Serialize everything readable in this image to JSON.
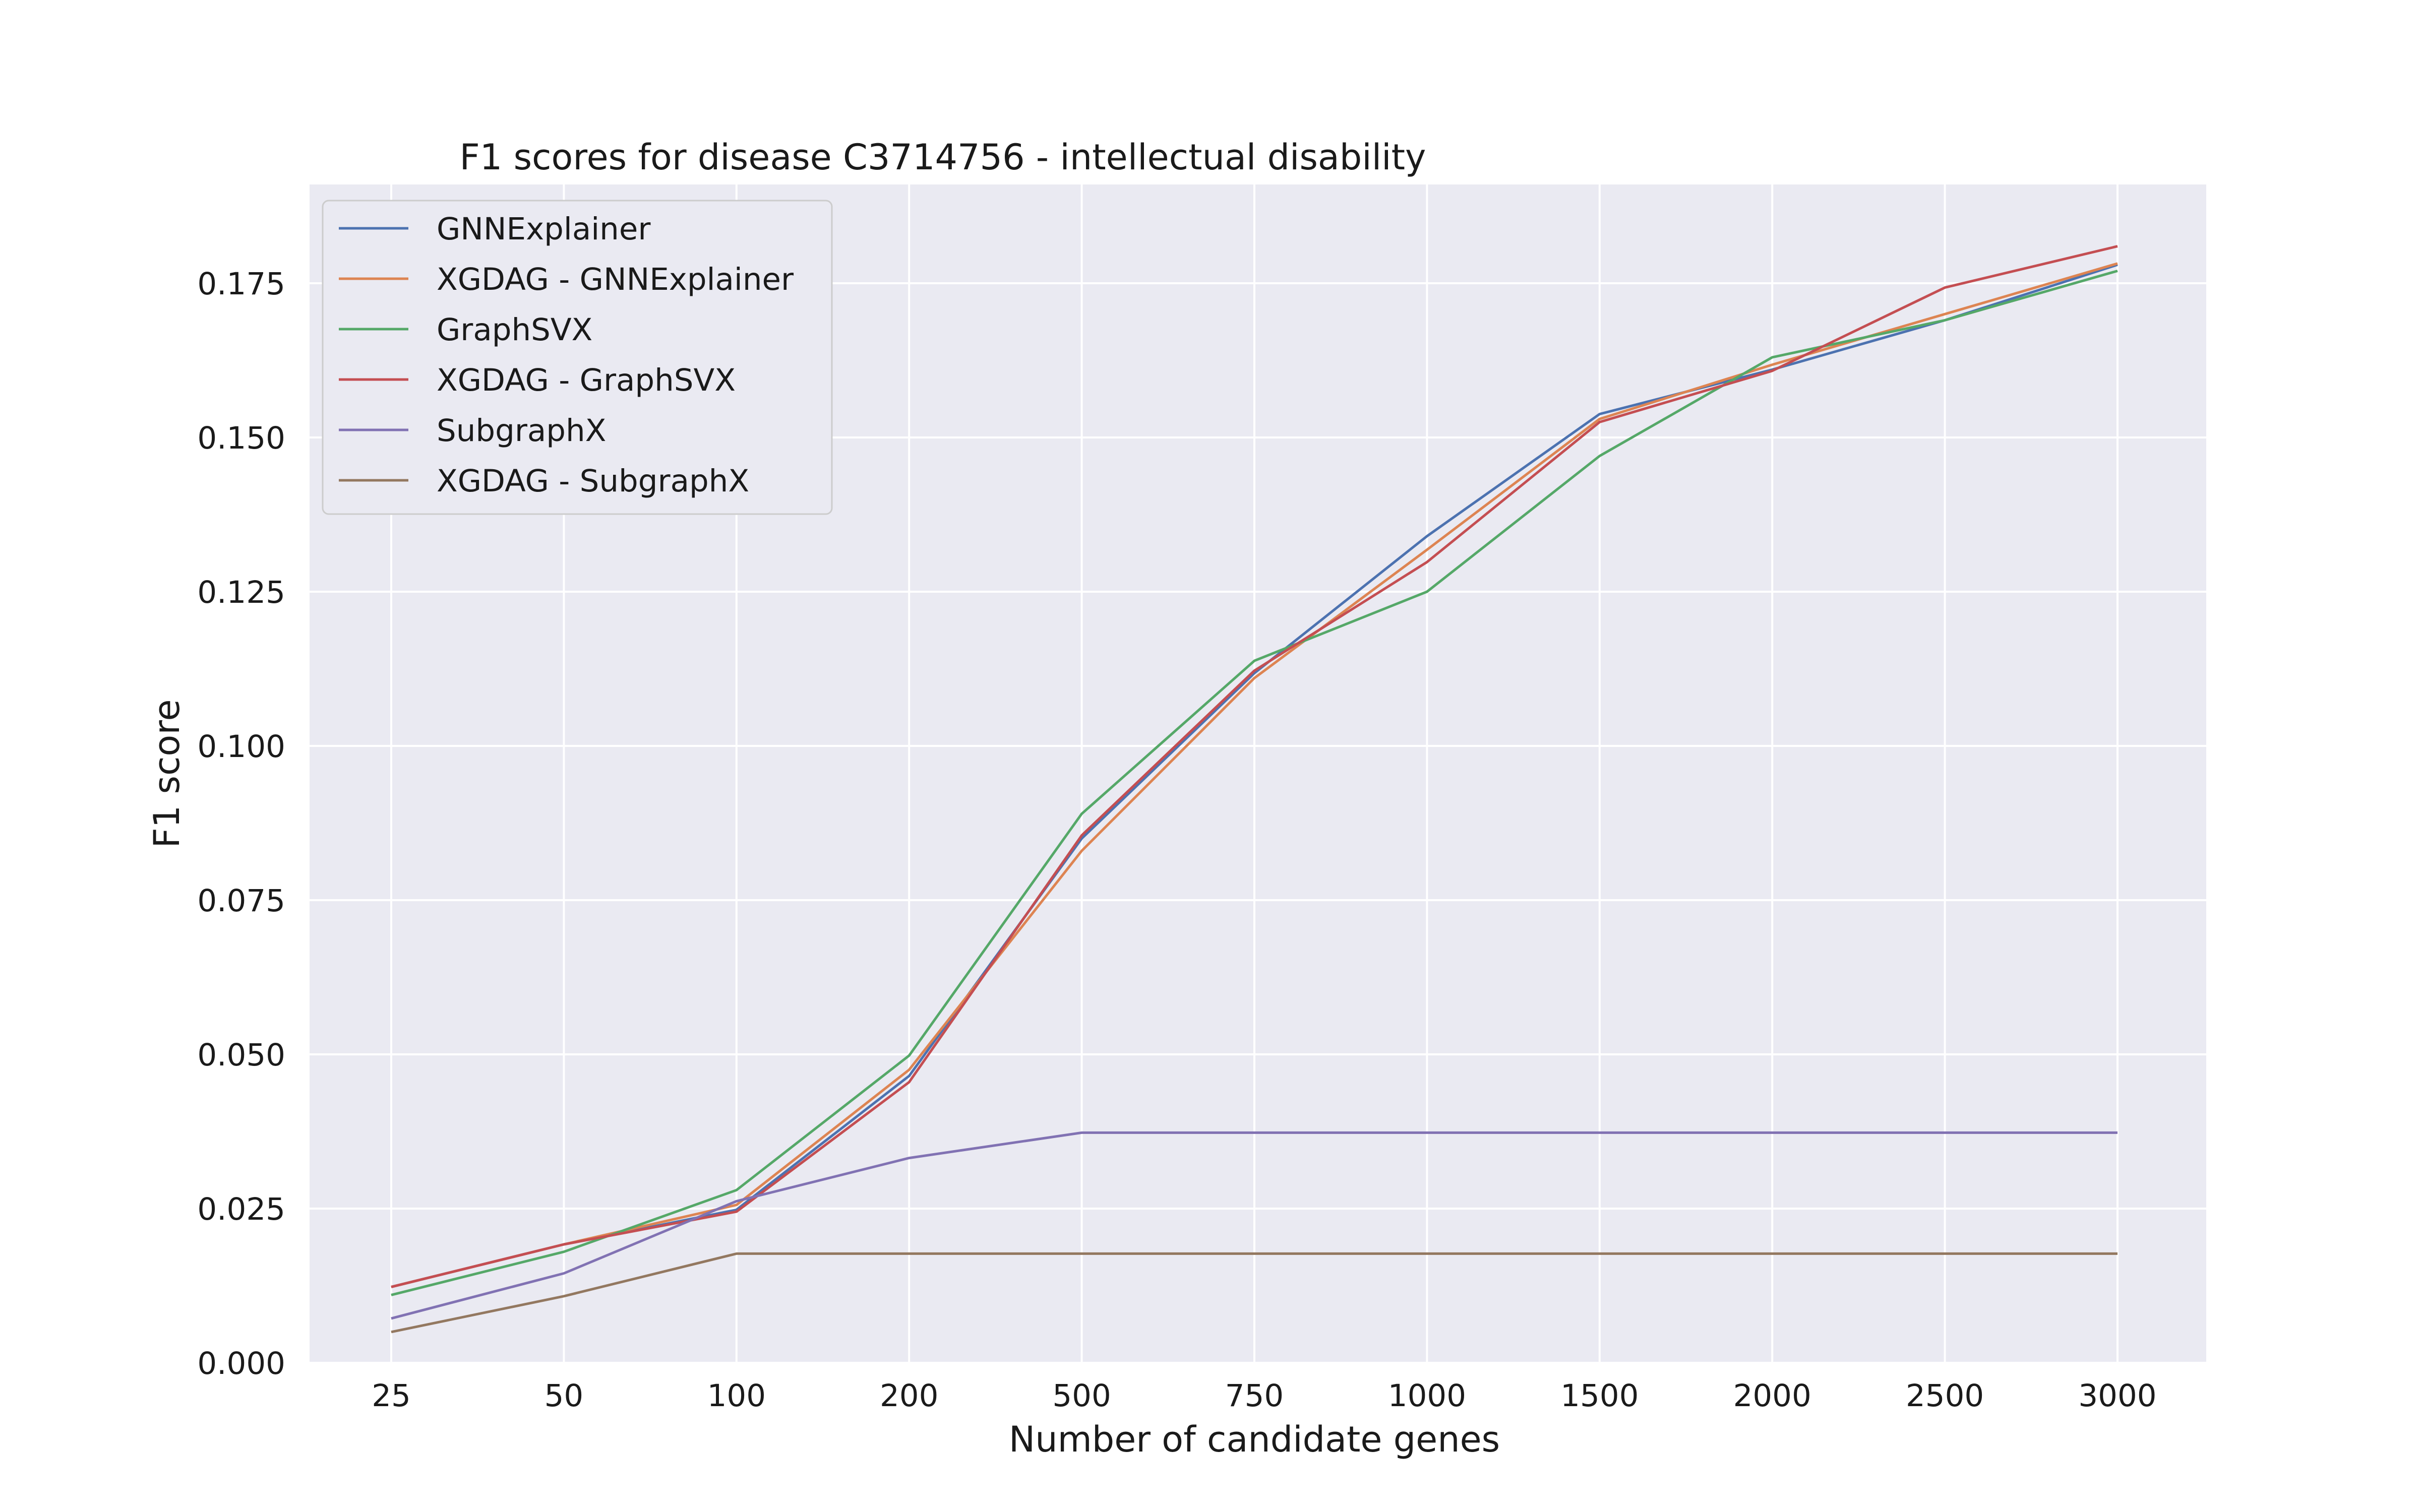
{
  "chart_data": {
    "type": "line",
    "title": "F1 scores for disease C3714756 - intellectual disability",
    "xlabel": "Number of candidate genes",
    "ylabel": "F1 score",
    "categories": [
      "25",
      "50",
      "100",
      "200",
      "500",
      "750",
      "1000",
      "1500",
      "2000",
      "2500",
      "3000"
    ],
    "yticks": [
      "0.000",
      "0.025",
      "0.050",
      "0.075",
      "0.100",
      "0.125",
      "0.150",
      "0.175"
    ],
    "ylim": [
      0,
      0.19
    ],
    "grid": true,
    "legend_position": "upper-left",
    "series": [
      {
        "name": "GNNExplainer",
        "color": "#4c72b0",
        "values": [
          0.0123,
          0.0192,
          0.0248,
          0.0465,
          0.085,
          0.1118,
          0.134,
          0.1538,
          0.161,
          0.169,
          0.178
        ]
      },
      {
        "name": "XGDAG - GNNExplainer",
        "color": "#dd8452",
        "values": [
          0.0123,
          0.0192,
          0.0256,
          0.0475,
          0.083,
          0.111,
          0.1318,
          0.153,
          0.1618,
          0.17,
          0.1782
        ]
      },
      {
        "name": "GraphSVX",
        "color": "#55a868",
        "values": [
          0.011,
          0.018,
          0.028,
          0.0498,
          0.089,
          0.1138,
          0.125,
          0.147,
          0.163,
          0.169,
          0.177
        ]
      },
      {
        "name": "XGDAG - GraphSVX",
        "color": "#c44e52",
        "values": [
          0.0123,
          0.0192,
          0.0245,
          0.0455,
          0.0855,
          0.1122,
          0.1298,
          0.1525,
          0.1608,
          0.1743,
          0.181
        ]
      },
      {
        "name": "SubgraphX",
        "color": "#8172b3",
        "values": [
          0.0072,
          0.0145,
          0.0262,
          0.0332,
          0.0373,
          0.0373,
          0.0373,
          0.0373,
          0.0373,
          0.0373,
          0.0373
        ]
      },
      {
        "name": "XGDAG - SubgraphX",
        "color": "#937860",
        "values": [
          0.005,
          0.0108,
          0.0177,
          0.0177,
          0.0177,
          0.0177,
          0.0177,
          0.0177,
          0.0177,
          0.0177,
          0.0177
        ]
      }
    ]
  },
  "style": {
    "plot_background": "#eaeaf2",
    "grid_color": "#ffffff",
    "legend_background": "#eaeaf2",
    "legend_border": "#cccccc"
  }
}
